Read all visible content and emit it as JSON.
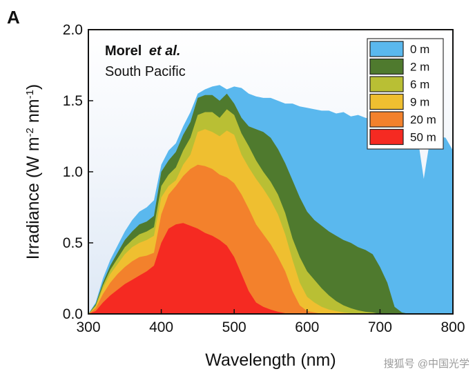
{
  "chart_data": {
    "type": "area",
    "panel_label": "A",
    "annotation": {
      "author": "Morel",
      "author_suffix": "et al.",
      "location": "South Pacific"
    },
    "xlabel": "Wavelength (nm)",
    "ylabel_main": "Irradiance (W m",
    "ylabel_sup1": "-2",
    "ylabel_mid": " nm",
    "ylabel_sup2": "-1",
    "ylabel_end": ")",
    "xlim": [
      300,
      800
    ],
    "ylim": [
      0.0,
      2.0
    ],
    "xticks": [
      "300",
      "400",
      "500",
      "600",
      "700",
      "800"
    ],
    "yticks": [
      "0.0",
      "0.5",
      "1.0",
      "1.5",
      "2.0"
    ],
    "legend_position": "top-right",
    "x": [
      300,
      310,
      320,
      330,
      340,
      350,
      360,
      370,
      380,
      390,
      400,
      410,
      420,
      430,
      440,
      450,
      460,
      470,
      480,
      490,
      500,
      510,
      520,
      530,
      540,
      550,
      560,
      570,
      580,
      590,
      600,
      610,
      620,
      630,
      640,
      650,
      660,
      670,
      680,
      690,
      700,
      710,
      720,
      730,
      740,
      750,
      760,
      770,
      780,
      790,
      800
    ],
    "series": [
      {
        "name": "0 m",
        "color": "#5ab8ee",
        "values": [
          0.0,
          0.08,
          0.25,
          0.38,
          0.48,
          0.58,
          0.66,
          0.72,
          0.75,
          0.8,
          1.05,
          1.15,
          1.2,
          1.32,
          1.42,
          1.55,
          1.58,
          1.6,
          1.61,
          1.58,
          1.6,
          1.59,
          1.55,
          1.53,
          1.52,
          1.52,
          1.5,
          1.48,
          1.48,
          1.46,
          1.45,
          1.44,
          1.43,
          1.43,
          1.41,
          1.42,
          1.39,
          1.4,
          1.38,
          1.37,
          1.36,
          1.35,
          1.33,
          1.32,
          1.31,
          1.3,
          0.95,
          1.27,
          1.25,
          1.24,
          1.15
        ]
      },
      {
        "name": "2 m",
        "color": "#4f7a2e",
        "values": [
          0.0,
          0.07,
          0.22,
          0.34,
          0.43,
          0.52,
          0.58,
          0.63,
          0.65,
          0.69,
          1.0,
          1.08,
          1.14,
          1.26,
          1.35,
          1.52,
          1.54,
          1.54,
          1.5,
          1.55,
          1.48,
          1.38,
          1.32,
          1.3,
          1.28,
          1.24,
          1.16,
          1.06,
          0.94,
          0.82,
          0.72,
          0.66,
          0.62,
          0.58,
          0.55,
          0.52,
          0.5,
          0.47,
          0.45,
          0.42,
          0.33,
          0.22,
          0.05,
          0.01,
          0.0,
          0.0,
          0.0,
          0.0,
          0.0,
          0.0,
          0.0
        ]
      },
      {
        "name": "6 m",
        "color": "#b9bf34",
        "values": [
          0.0,
          0.06,
          0.2,
          0.31,
          0.39,
          0.47,
          0.52,
          0.56,
          0.58,
          0.61,
          0.9,
          0.98,
          1.03,
          1.15,
          1.24,
          1.4,
          1.42,
          1.42,
          1.38,
          1.44,
          1.4,
          1.27,
          1.18,
          1.08,
          1.0,
          0.93,
          0.84,
          0.71,
          0.53,
          0.4,
          0.3,
          0.24,
          0.18,
          0.13,
          0.09,
          0.06,
          0.04,
          0.025,
          0.015,
          0.01,
          0.0,
          0.0,
          0.0,
          0.0,
          0.0,
          0.0,
          0.0,
          0.0,
          0.0,
          0.0,
          0.0
        ]
      },
      {
        "name": "9 m",
        "color": "#efbf30",
        "values": [
          0.0,
          0.05,
          0.18,
          0.28,
          0.35,
          0.42,
          0.47,
          0.5,
          0.52,
          0.55,
          0.82,
          0.9,
          0.94,
          1.05,
          1.12,
          1.28,
          1.3,
          1.28,
          1.25,
          1.29,
          1.26,
          1.12,
          1.03,
          0.95,
          0.88,
          0.8,
          0.7,
          0.56,
          0.38,
          0.22,
          0.12,
          0.08,
          0.05,
          0.03,
          0.02,
          0.01,
          0.005,
          0.0,
          0.0,
          0.0,
          0.0,
          0.0,
          0.0,
          0.0,
          0.0,
          0.0,
          0.0,
          0.0,
          0.0,
          0.0,
          0.0
        ]
      },
      {
        "name": "20 m",
        "color": "#f3812c",
        "values": [
          0.0,
          0.04,
          0.14,
          0.22,
          0.28,
          0.33,
          0.37,
          0.4,
          0.41,
          0.43,
          0.7,
          0.84,
          0.9,
          0.97,
          1.02,
          1.05,
          1.04,
          1.02,
          0.98,
          0.96,
          0.92,
          0.84,
          0.74,
          0.63,
          0.56,
          0.49,
          0.4,
          0.3,
          0.16,
          0.06,
          0.02,
          0.01,
          0.0,
          0.0,
          0.0,
          0.0,
          0.0,
          0.0,
          0.0,
          0.0,
          0.0,
          0.0,
          0.0,
          0.0,
          0.0,
          0.0,
          0.0,
          0.0,
          0.0,
          0.0,
          0.0
        ]
      },
      {
        "name": "50 m",
        "color": "#f52a22",
        "values": [
          0.0,
          0.02,
          0.08,
          0.13,
          0.17,
          0.21,
          0.24,
          0.27,
          0.3,
          0.34,
          0.5,
          0.6,
          0.63,
          0.64,
          0.62,
          0.6,
          0.57,
          0.55,
          0.52,
          0.48,
          0.4,
          0.28,
          0.16,
          0.08,
          0.05,
          0.03,
          0.015,
          0.005,
          0.0,
          0.0,
          0.0,
          0.0,
          0.0,
          0.0,
          0.0,
          0.0,
          0.0,
          0.0,
          0.0,
          0.0,
          0.0,
          0.0,
          0.0,
          0.0,
          0.0,
          0.0,
          0.0,
          0.0,
          0.0,
          0.0,
          0.0
        ]
      }
    ]
  },
  "watermark": "搜狐号 @中国光学"
}
